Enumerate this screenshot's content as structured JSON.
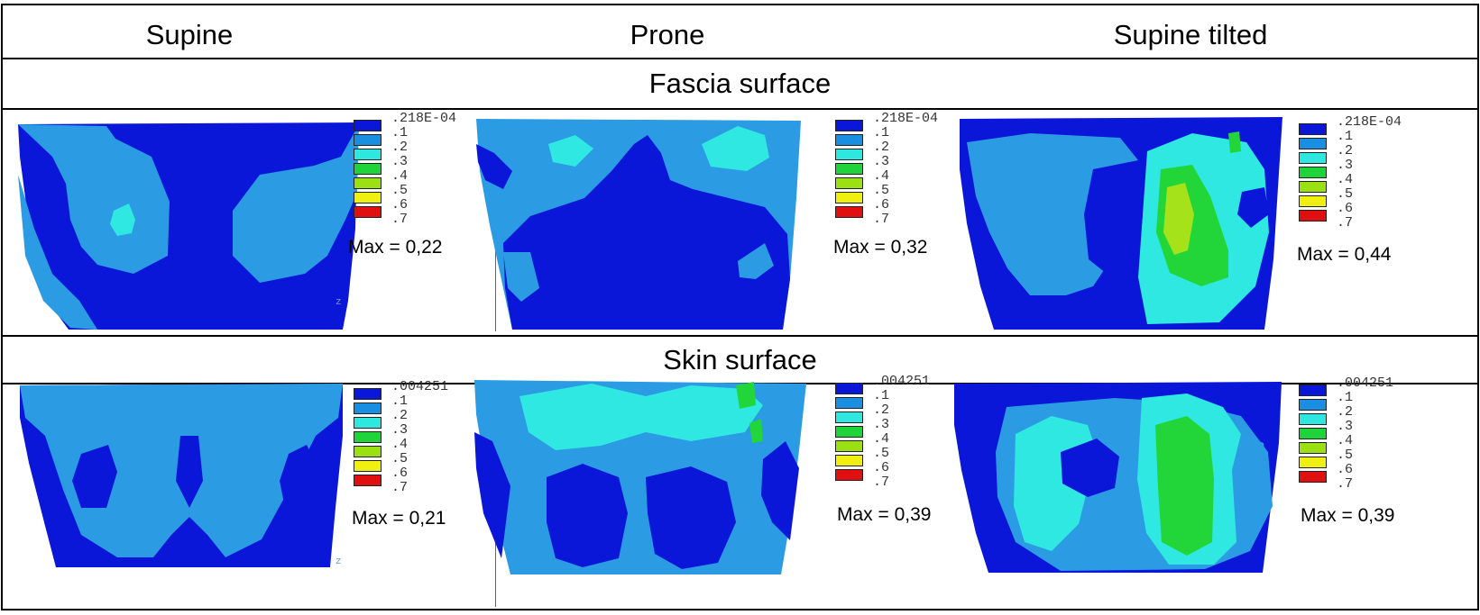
{
  "columns": [
    "Supine",
    "Prone",
    "Supine tilted"
  ],
  "sections": [
    {
      "title": "Fascia surface",
      "panels": [
        {
          "legend_min": ".218E-04",
          "max_label": "Max = 0,22"
        },
        {
          "legend_min": ".218E-04",
          "max_label": "Max = 0,32"
        },
        {
          "legend_min": ".218E-04",
          "max_label": "Max = 0,44"
        }
      ]
    },
    {
      "title": "Skin surface",
      "panels": [
        {
          "legend_min": ".004251",
          "max_label": "Max = 0,21"
        },
        {
          "legend_min": ".004251",
          "max_label": "Max = 0,39"
        },
        {
          "legend_min": ".004251",
          "max_label": "Max = 0,39"
        }
      ]
    }
  ],
  "legend_levels": [
    ".1",
    ".2",
    ".3",
    ".4",
    ".5",
    ".6",
    ".7"
  ],
  "legend_colors": [
    "#0a16d8",
    "#1a8ee0",
    "#2ee8e0",
    "#1fd43a",
    "#9ae012",
    "#f0f010",
    "#e01010"
  ],
  "surface_colors": {
    "band0": "#0a16d8",
    "band1": "#2b9be3",
    "band2": "#2fe8e2",
    "band3": "#22d63a",
    "band4": "#a5e21a"
  },
  "axis_label": "z"
}
